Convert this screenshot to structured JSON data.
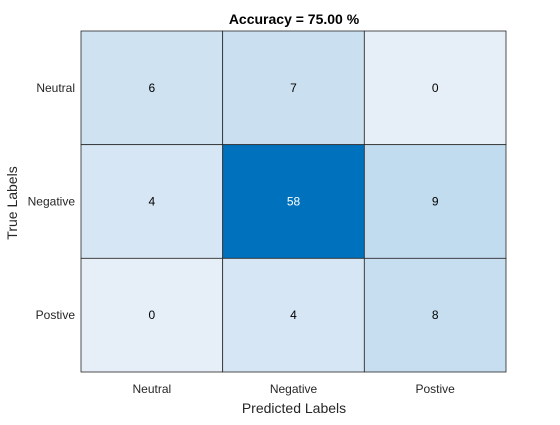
{
  "chart_data": {
    "type": "heatmap",
    "title": "Accuracy = 75.00 %",
    "xlabel": "Predicted Labels",
    "ylabel": "True Labels",
    "x_categories": [
      "Neutral",
      "Negative",
      "Postive"
    ],
    "y_categories": [
      "Neutral",
      "Negative",
      "Postive"
    ],
    "values": [
      [
        6,
        7,
        0
      ],
      [
        4,
        58,
        9
      ],
      [
        0,
        4,
        8
      ]
    ],
    "color_low": "#e6eff8",
    "color_high": "#0072bd",
    "grid": true,
    "legend": "none"
  }
}
